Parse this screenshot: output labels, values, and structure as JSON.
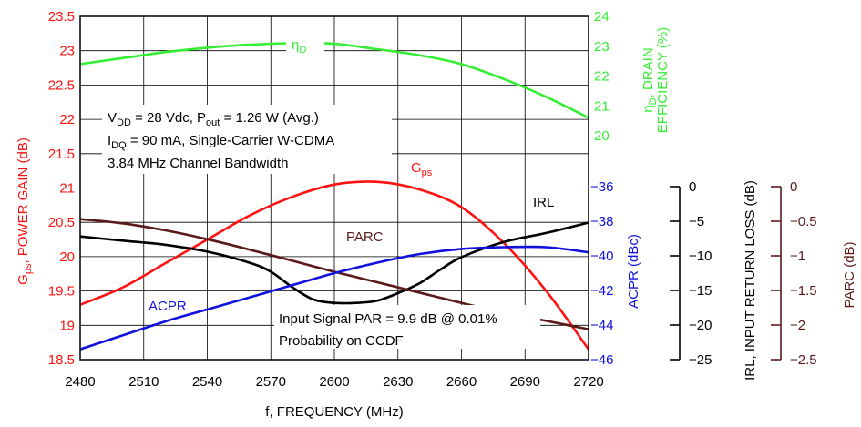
{
  "chart_data": {
    "type": "line",
    "x_axis": {
      "label": "f, FREQUENCY (MHz)",
      "ticks": [
        2480,
        2510,
        2540,
        2570,
        2600,
        2630,
        2660,
        2690,
        2720
      ],
      "range": [
        2480,
        2720
      ]
    },
    "axes": {
      "gps": {
        "label": "G_ps, POWER GAIN (dB)",
        "ticks": [
          "23.5",
          "23",
          "22.5",
          "22",
          "21.5",
          "21",
          "20.5",
          "20",
          "19.5",
          "19",
          "18.5"
        ],
        "range": [
          18.5,
          23.5
        ],
        "color": "#ff1111"
      },
      "eff": {
        "label": "ηD, DRAIN EFFICIENCY (%)",
        "ticks": [
          "24",
          "23",
          "22",
          "21",
          "20"
        ],
        "range": [
          20,
          24
        ],
        "color": "#33ee33"
      },
      "acpr": {
        "label": "ACPR (dBc)",
        "ticks": [
          "−36",
          "−38",
          "−40",
          "−42",
          "−44",
          "−46"
        ],
        "range": [
          -46,
          -36
        ],
        "color": "#1111dd"
      },
      "irl": {
        "label": "IRL, INPUT RETURN LOSS (dB)",
        "ticks": [
          "0",
          "−5",
          "−10",
          "−15",
          "−20",
          "−25"
        ],
        "range": [
          -25,
          0
        ],
        "color": "#000000"
      },
      "parc": {
        "label": "PARC (dB)",
        "ticks": [
          "0",
          "−0.5",
          "−1",
          "−1.5",
          "−2",
          "−2.5"
        ],
        "range": [
          -2.5,
          0
        ],
        "color": "#5a1a1a"
      }
    },
    "series": [
      {
        "name": "ηD",
        "axis": "eff",
        "color": "#33ee33",
        "x": [
          2480,
          2500,
          2520,
          2540,
          2560,
          2580,
          2600,
          2620,
          2640,
          2660,
          2680,
          2700,
          2720
        ],
        "y": [
          22.4,
          22.6,
          22.8,
          22.95,
          23.05,
          23.1,
          23.08,
          22.9,
          22.7,
          22.4,
          21.9,
          21.3,
          20.6
        ]
      },
      {
        "name": "G_ps",
        "axis": "gps",
        "color": "#ff1111",
        "x": [
          2480,
          2500,
          2520,
          2540,
          2560,
          2580,
          2600,
          2620,
          2640,
          2660,
          2680,
          2700,
          2720
        ],
        "y": [
          19.3,
          19.55,
          19.9,
          20.25,
          20.6,
          20.87,
          21.05,
          21.09,
          20.98,
          20.72,
          20.2,
          19.5,
          18.65
        ]
      },
      {
        "name": "IRL",
        "axis": "irl",
        "color": "#000000",
        "x": [
          2480,
          2500,
          2520,
          2540,
          2560,
          2570,
          2580,
          2590,
          2600,
          2610,
          2620,
          2630,
          2640,
          2650,
          2660,
          2680,
          2700,
          2720
        ],
        "y": [
          -7.2,
          -7.8,
          -8.4,
          -9.4,
          -11.0,
          -12.3,
          -14.5,
          -16.3,
          -16.8,
          -16.8,
          -16.5,
          -15.4,
          -14.0,
          -12.0,
          -10.2,
          -8.0,
          -6.7,
          -5.2
        ]
      },
      {
        "name": "PARC",
        "axis": "parc",
        "color": "#5a1a1a",
        "x": [
          2480,
          2500,
          2520,
          2540,
          2560,
          2580,
          2600,
          2620,
          2640,
          2660,
          2680,
          2700,
          2720
        ],
        "y": [
          -0.47,
          -0.53,
          -0.63,
          -0.76,
          -0.91,
          -1.07,
          -1.23,
          -1.38,
          -1.53,
          -1.68,
          -1.82,
          -1.94,
          -2.06
        ]
      },
      {
        "name": "ACPR",
        "axis": "acpr",
        "color": "#1111dd",
        "x": [
          2480,
          2500,
          2520,
          2540,
          2560,
          2580,
          2600,
          2620,
          2640,
          2660,
          2680,
          2700,
          2720
        ],
        "y": [
          -45.4,
          -44.6,
          -43.8,
          -43.1,
          -42.4,
          -41.7,
          -41.0,
          -40.4,
          -39.9,
          -39.6,
          -39.5,
          -39.5,
          -39.8
        ]
      }
    ],
    "curve_labels": {
      "eff": "ηD",
      "gps": "Gps",
      "irl": "IRL",
      "parc": "PARC",
      "acpr": "ACPR"
    },
    "annotations": {
      "conditions": [
        "VDD = 28 Vdc, Pout = 1.26 W (Avg.)",
        "IDQ = 90 mA, Single-Carrier W-CDMA",
        "3.84 MHz Channel Bandwidth"
      ],
      "signal": [
        "Input Signal PAR = 9.9 dB @ 0.01%",
        "Probability on CCDF"
      ]
    },
    "grid": true
  }
}
